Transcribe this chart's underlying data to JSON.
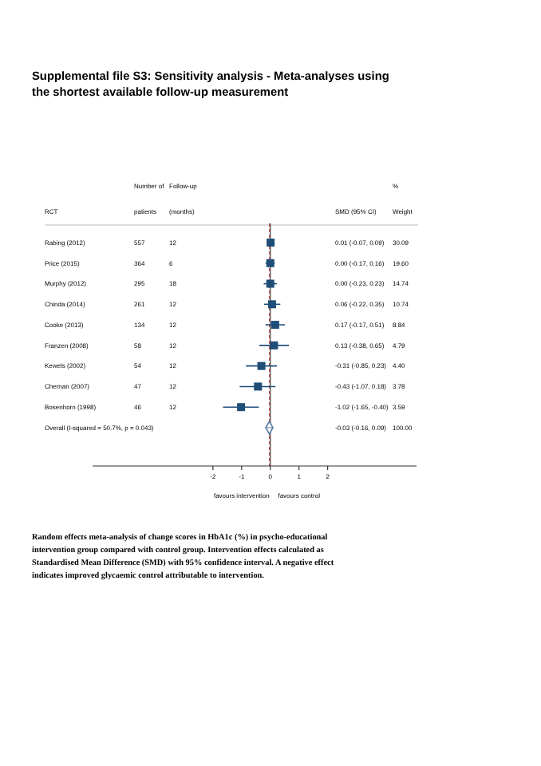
{
  "chart_data": {
    "type": "scatter",
    "orientation": "horizontal",
    "title": "Supplemental file S3: Sensitivity analysis - Meta-analyses using the shortest available follow-up measurement",
    "categories": [
      "Rabing (2012)",
      "Price (2015)",
      "Murphy (2012)",
      "Chinda (2014)",
      "Cooke (2013)",
      "Franzen (2008)",
      "Kewels (2002)",
      "Chernan (2007)",
      "Bosenhorn (1998)",
      "Overall (I-squared = 50.7%, p = 0.043)"
    ],
    "series": [
      {
        "marker": "square",
        "color": "#1f4e79",
        "values": [
          0.01,
          0.0,
          0.0,
          0.06,
          0.17,
          0.13,
          -0.31,
          -0.43,
          -1.02,
          null
        ],
        "errors": [
          [
            -0.07,
            0.09
          ],
          [
            -0.17,
            0.16
          ],
          [
            -0.23,
            0.23
          ],
          [
            -0.22,
            0.35
          ],
          [
            -0.17,
            0.51
          ],
          [
            -0.38,
            0.65
          ],
          [
            -0.85,
            0.23
          ],
          [
            -1.07,
            0.18
          ],
          [
            -1.65,
            -0.4
          ],
          null
        ]
      },
      {
        "marker": "diamond",
        "color": "#5b7fa6",
        "values": [
          null,
          null,
          null,
          null,
          null,
          null,
          null,
          null,
          null,
          -0.03
        ],
        "errors": [
          null,
          null,
          null,
          null,
          null,
          null,
          null,
          null,
          null,
          [
            -0.16,
            0.09
          ]
        ]
      }
    ],
    "xlim": [
      -6.2,
      5.1
    ],
    "xticks": [
      -2,
      -1,
      0,
      1,
      2
    ],
    "ref_lines": [
      {
        "axis": "x",
        "value": 0,
        "color": "#555555",
        "line_style": "solid"
      },
      {
        "axis": "x",
        "value": -0.03,
        "color": "#c0504d",
        "line_style": "dashed"
      }
    ],
    "annotations": [
      "RCT",
      "Number of",
      "patients",
      "Follow-up",
      "(months)",
      "SMD (95% CI)",
      "%",
      "Weight",
      "favours intervention",
      "favours control",
      "Random effects meta-analysis of change scores in HbA1c (%) in psycho-educational intervention group compared with control group. Intervention effects calculated as Standardised Mean Difference (SMD) with 95% confidence interval. A negative effect indicates improved glycaemic control attributable to intervention.",
      "557",
      "12",
      "0.01 (-0.07, 0.09)",
      "30.09",
      "364",
      "6",
      "0.00 (-0.17, 0.16)",
      "19.60",
      "295",
      "18",
      "0.00 (-0.23, 0.23)",
      "14.74",
      "261",
      "12",
      "0.06 (-0.22, 0.35)",
      "10.74",
      "134",
      "12",
      "0.17 (-0.17, 0.51)",
      "8.84",
      "58",
      "12",
      "0.13 (-0.38, 0.65)",
      "4.79",
      "54",
      "12",
      "-0.31 (-0.85, 0.23)",
      "4.40",
      "47",
      "12",
      "-0.43 (-1.07, 0.18)",
      "3.78",
      "46",
      "12",
      "-1.02 (-1.65, -0.40)",
      "3.59",
      "-0.03 (-0.16, 0.09)",
      "100.00"
    ]
  }
}
